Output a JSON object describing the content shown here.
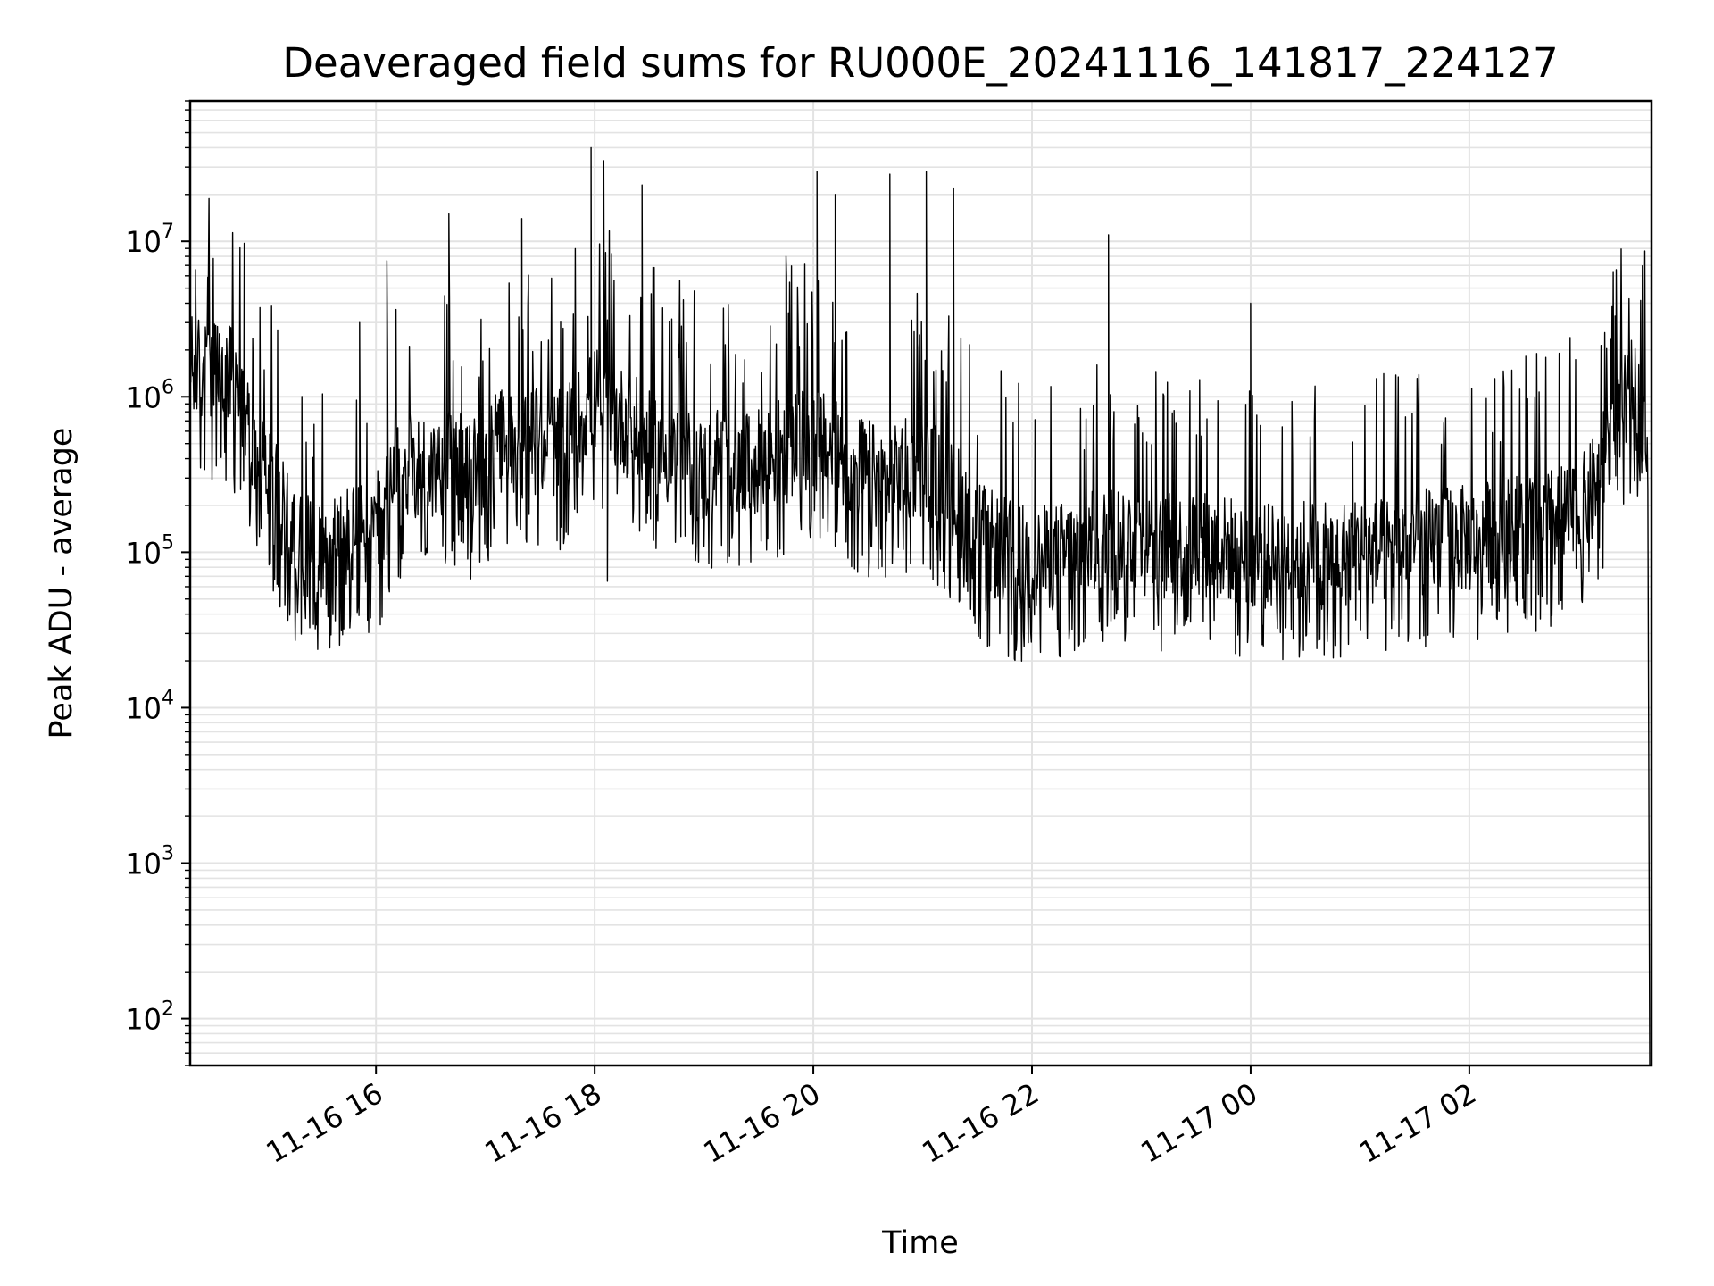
{
  "chart_data": {
    "type": "line",
    "title": "Deaveraged field sums for RU000E_20241116_141817_224127",
    "xlabel": "Time",
    "ylabel": "Peak ADU - average",
    "yscale": "log",
    "ylim": [
      50,
      80000000
    ],
    "xlim": [
      "2024-11-16 14:18",
      "2024-11-17 03:40"
    ],
    "grid": true,
    "line_color": "#000000",
    "x_ticks": [
      {
        "value": "2024-11-16 16:00",
        "label": "11-16 16"
      },
      {
        "value": "2024-11-16 18:00",
        "label": "11-16 18"
      },
      {
        "value": "2024-11-16 20:00",
        "label": "11-16 20"
      },
      {
        "value": "2024-11-16 22:00",
        "label": "11-16 22"
      },
      {
        "value": "2024-11-17 00:00",
        "label": "11-17 00"
      },
      {
        "value": "2024-11-17 02:00",
        "label": "11-17 02"
      }
    ],
    "y_ticks": [
      {
        "value": 100,
        "base": "10",
        "exp": "2"
      },
      {
        "value": 1000,
        "base": "10",
        "exp": "3"
      },
      {
        "value": 10000,
        "base": "10",
        "exp": "4"
      },
      {
        "value": 100000,
        "base": "10",
        "exp": "5"
      },
      {
        "value": 1000000,
        "base": "10",
        "exp": "6"
      },
      {
        "value": 10000000,
        "base": "10",
        "exp": "7"
      }
    ],
    "series": [
      {
        "x": [
          "2024-11-16 14:18",
          "2024-11-16 14:30",
          "2024-11-16 14:40",
          "2024-11-16 14:50",
          "2024-11-16 15:00",
          "2024-11-16 15:10",
          "2024-11-16 15:20",
          "2024-11-16 15:30",
          "2024-11-16 15:40",
          "2024-11-16 15:50",
          "2024-11-16 16:00",
          "2024-11-16 16:10",
          "2024-11-16 16:20",
          "2024-11-16 16:30",
          "2024-11-16 16:40",
          "2024-11-16 16:50",
          "2024-11-16 17:00",
          "2024-11-16 17:10",
          "2024-11-16 17:20",
          "2024-11-16 17:30",
          "2024-11-16 17:40",
          "2024-11-16 17:50",
          "2024-11-16 18:00",
          "2024-11-16 18:10",
          "2024-11-16 18:20",
          "2024-11-16 18:30",
          "2024-11-16 18:40",
          "2024-11-16 18:50",
          "2024-11-16 19:00",
          "2024-11-16 19:10",
          "2024-11-16 19:20",
          "2024-11-16 19:30",
          "2024-11-16 19:40",
          "2024-11-16 19:50",
          "2024-11-16 20:00",
          "2024-11-16 20:10",
          "2024-11-16 20:20",
          "2024-11-16 20:30",
          "2024-11-16 20:40",
          "2024-11-16 20:50",
          "2024-11-16 21:00",
          "2024-11-16 21:10",
          "2024-11-16 21:20",
          "2024-11-16 21:30",
          "2024-11-16 21:40",
          "2024-11-16 21:50",
          "2024-11-16 22:00",
          "2024-11-16 22:10",
          "2024-11-16 22:20",
          "2024-11-16 22:30",
          "2024-11-16 22:40",
          "2024-11-16 22:50",
          "2024-11-16 23:00",
          "2024-11-16 23:10",
          "2024-11-16 23:20",
          "2024-11-16 23:30",
          "2024-11-16 23:40",
          "2024-11-16 23:50",
          "2024-11-17 00:00",
          "2024-11-17 00:10",
          "2024-11-17 00:20",
          "2024-11-17 00:30",
          "2024-11-17 00:40",
          "2024-11-17 00:50",
          "2024-11-17 01:00",
          "2024-11-17 01:10",
          "2024-11-17 01:20",
          "2024-11-17 01:30",
          "2024-11-17 01:40",
          "2024-11-17 01:50",
          "2024-11-17 02:00",
          "2024-11-17 02:10",
          "2024-11-17 02:20",
          "2024-11-17 02:30",
          "2024-11-17 02:40",
          "2024-11-17 02:50",
          "2024-11-17 03:00",
          "2024-11-17 03:10",
          "2024-11-17 03:20",
          "2024-11-17 03:30",
          "2024-11-17 03:38",
          "2024-11-17 03:39"
        ],
        "y": [
          1400000,
          1300000,
          1200000,
          600000,
          300000,
          150000,
          100000,
          90000,
          110000,
          120000,
          130000,
          250000,
          350000,
          300000,
          400000,
          280000,
          350000,
          500000,
          450000,
          500000,
          450000,
          600000,
          900000,
          700000,
          600000,
          450000,
          400000,
          350000,
          300000,
          400000,
          300000,
          350000,
          400000,
          450000,
          500000,
          400000,
          350000,
          300000,
          250000,
          300000,
          350000,
          250000,
          200000,
          120000,
          100000,
          90000,
          80000,
          85000,
          90000,
          100000,
          110000,
          120000,
          110000,
          100000,
          100000,
          110000,
          100000,
          95000,
          90000,
          85000,
          90000,
          95000,
          85000,
          90000,
          95000,
          90000,
          100000,
          105000,
          110000,
          115000,
          110000,
          120000,
          130000,
          135000,
          140000,
          150000,
          160000,
          250000,
          600000,
          1000000,
          500000,
          50
        ],
        "peaks": [
          {
            "x": "2024-11-16 14:28",
            "y": 5500000
          },
          {
            "x": "2024-11-16 15:51",
            "y": 3000000
          },
          {
            "x": "2024-11-16 16:06",
            "y": 7500000
          },
          {
            "x": "2024-11-16 16:40",
            "y": 15000000
          },
          {
            "x": "2024-11-16 17:20",
            "y": 14000000
          },
          {
            "x": "2024-11-16 17:58",
            "y": 40000000
          },
          {
            "x": "2024-11-16 18:05",
            "y": 33000000
          },
          {
            "x": "2024-11-16 18:26",
            "y": 23000000
          },
          {
            "x": "2024-11-16 19:45",
            "y": 8000000
          },
          {
            "x": "2024-11-16 20:02",
            "y": 28000000
          },
          {
            "x": "2024-11-16 20:12",
            "y": 20000000
          },
          {
            "x": "2024-11-16 20:42",
            "y": 27000000
          },
          {
            "x": "2024-11-16 21:02",
            "y": 28000000
          },
          {
            "x": "2024-11-16 21:17",
            "y": 22000000
          },
          {
            "x": "2024-11-16 22:42",
            "y": 11000000
          },
          {
            "x": "2024-11-17 00:00",
            "y": 4000000
          },
          {
            "x": "2024-11-17 03:20",
            "y": 3300000
          }
        ],
        "troughs": [
          {
            "x": "2024-11-16 18:07",
            "y": 65000
          },
          {
            "x": "2024-11-16 21:20",
            "y": 48000
          },
          {
            "x": "2024-11-17 00:39",
            "y": 43000
          }
        ]
      }
    ]
  }
}
